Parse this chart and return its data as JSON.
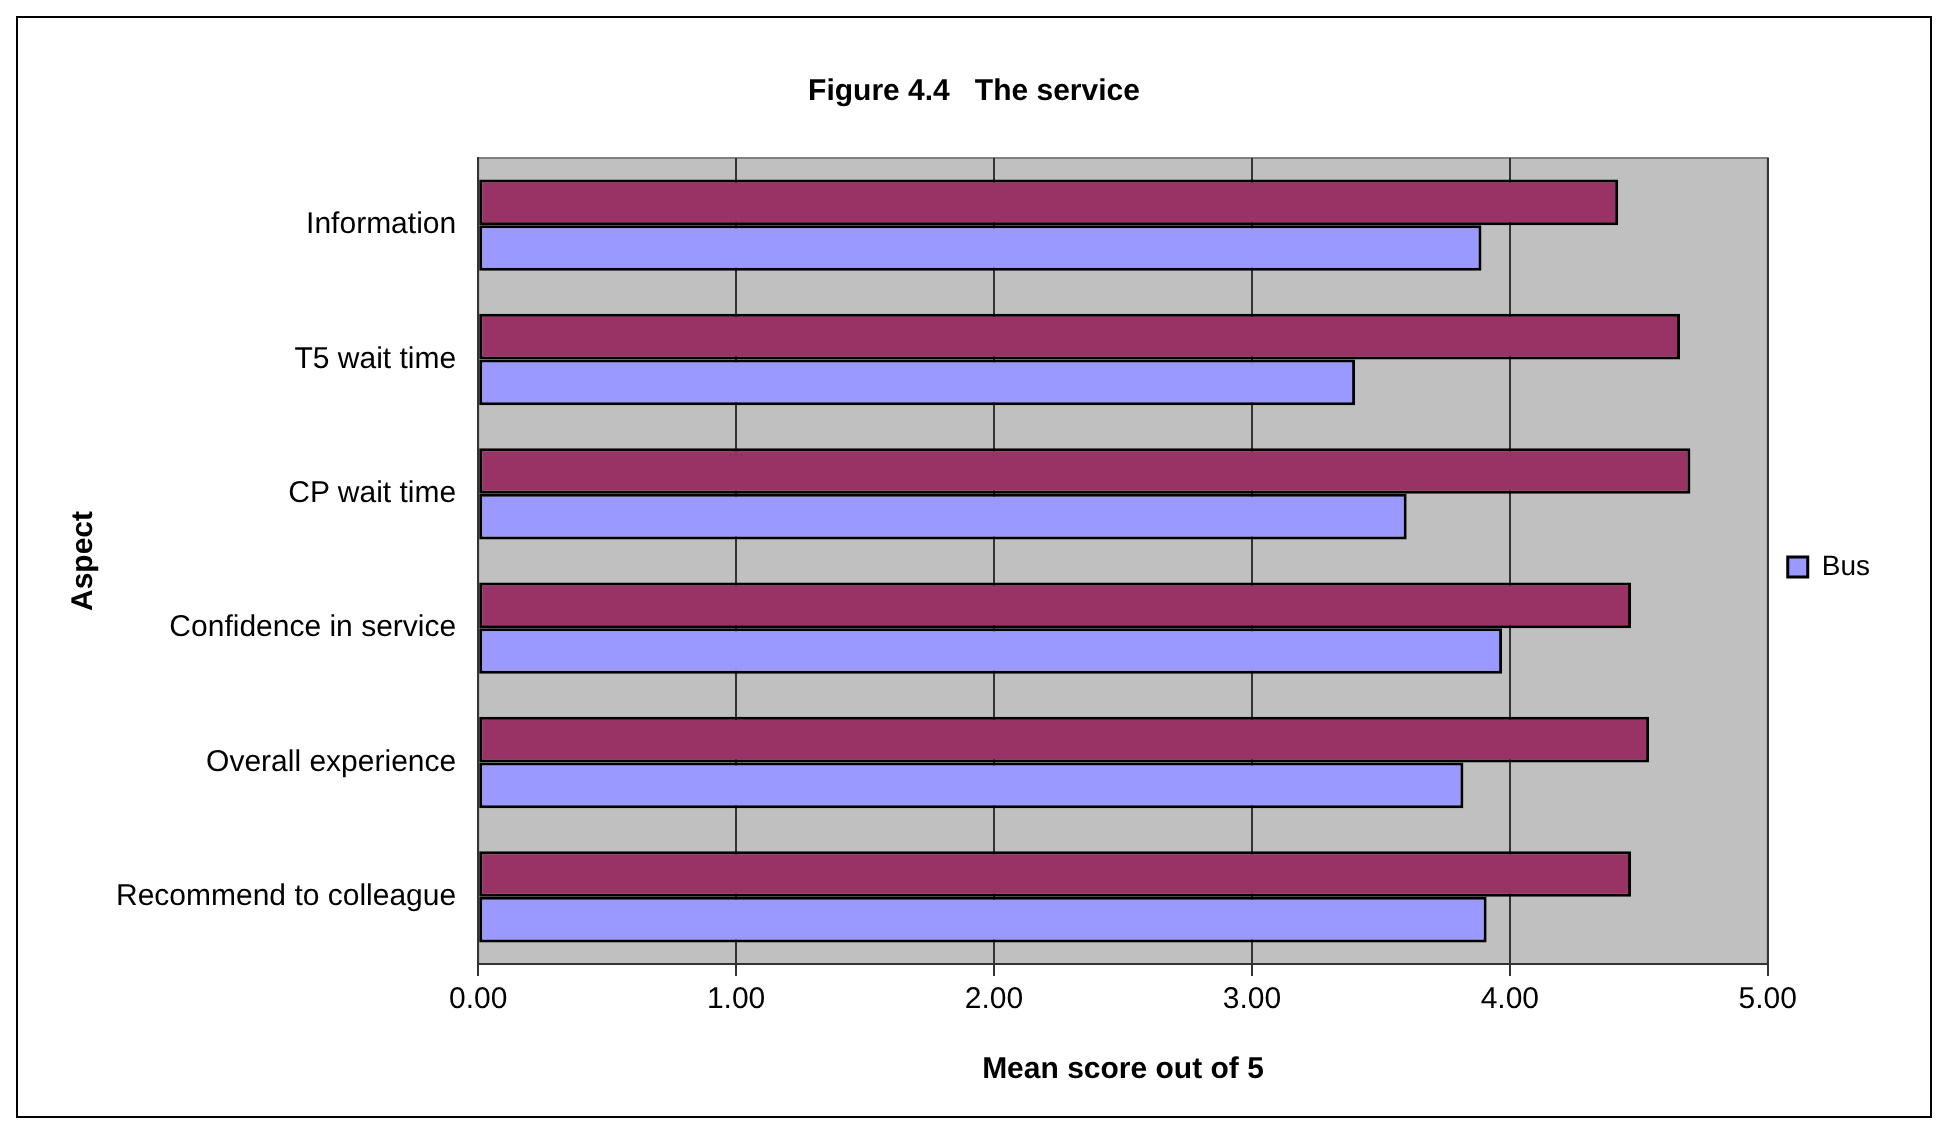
{
  "chart_data": {
    "type": "bar",
    "orientation": "horizontal",
    "title": "Figure 4.4   The service",
    "xlabel": "Mean score out of 5",
    "ylabel": "Aspect",
    "categories": [
      "Information",
      "T5 wait time",
      "CP wait time",
      "Confidence in service",
      "Overall experience",
      "Recommend to colleague"
    ],
    "series": [
      {
        "color": "#993366",
        "values": [
          4.42,
          4.66,
          4.7,
          4.47,
          4.54,
          4.47
        ]
      },
      {
        "name": "Bus",
        "color": "#9999ff",
        "values": [
          3.89,
          3.4,
          3.6,
          3.97,
          3.82,
          3.91
        ]
      }
    ],
    "xlim": [
      0,
      5
    ],
    "xticks": [
      {
        "value": 0,
        "label": "0.00"
      },
      {
        "value": 1,
        "label": "1.00"
      },
      {
        "value": 2,
        "label": "2.00"
      },
      {
        "value": 3,
        "label": "3.00"
      },
      {
        "value": 4,
        "label": "4.00"
      },
      {
        "value": 5,
        "label": "5.00"
      }
    ],
    "grid": "x",
    "legend": "right"
  }
}
